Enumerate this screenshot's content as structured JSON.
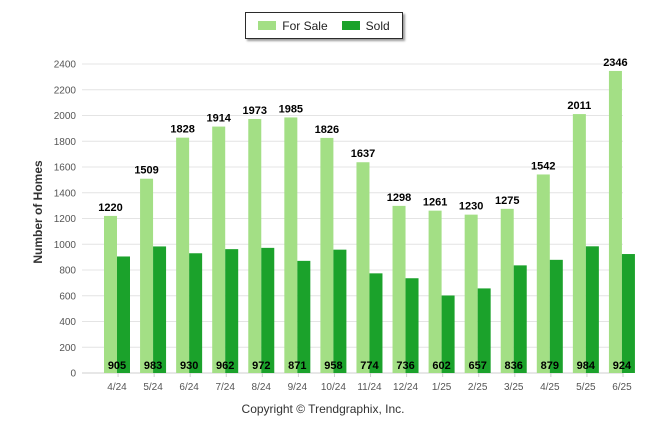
{
  "chart_data": {
    "type": "bar",
    "title": "",
    "xlabel": "",
    "ylabel": "Number of Homes",
    "ylim": [
      0,
      2400
    ],
    "yticks": [
      0,
      200,
      400,
      600,
      800,
      1000,
      1200,
      1400,
      1600,
      1800,
      2000,
      2200,
      2400
    ],
    "grid": true,
    "legend_position": "top-center",
    "categories": [
      "4/24",
      "5/24",
      "6/24",
      "7/24",
      "8/24",
      "9/24",
      "10/24",
      "11/24",
      "12/24",
      "1/25",
      "2/25",
      "3/25",
      "4/25",
      "5/25",
      "6/25"
    ],
    "series": [
      {
        "name": "For Sale",
        "color": "#a3df85",
        "label_position": "above",
        "values": [
          1220,
          1509,
          1828,
          1914,
          1973,
          1985,
          1826,
          1637,
          1298,
          1261,
          1230,
          1275,
          1542,
          2011,
          2346
        ]
      },
      {
        "name": "Sold",
        "color": "#1ba22b",
        "label_position": "bottom",
        "values": [
          905,
          983,
          930,
          962,
          972,
          871,
          958,
          774,
          736,
          602,
          657,
          836,
          879,
          984,
          924
        ]
      }
    ]
  },
  "copyright": "Copyright © Trendgraphix, Inc."
}
